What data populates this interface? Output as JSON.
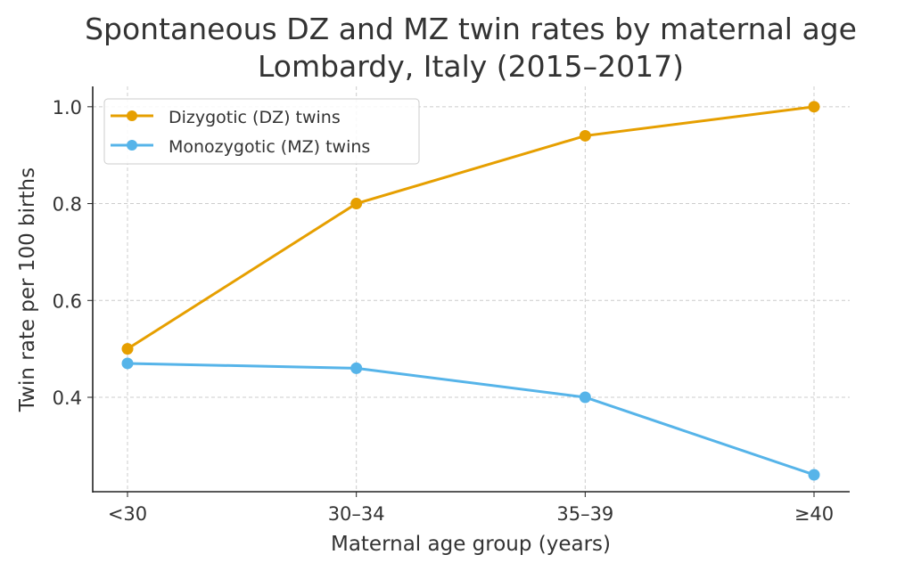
{
  "chart_data": {
    "type": "line",
    "title": "Spontaneous DZ and MZ twin rates by maternal age",
    "subtitle": "Lombardy, Italy (2015–2017)",
    "xlabel": "Maternal age group (years)",
    "ylabel": "Twin rate per 100 births",
    "categories": [
      "<30",
      "30–34",
      "35–39",
      "≥40"
    ],
    "yticks": [
      0.4,
      0.6,
      0.8,
      1.0
    ],
    "ytick_labels": [
      "0.4",
      "0.6",
      "0.8",
      "1.0"
    ],
    "ylim": [
      0.205,
      1.042
    ],
    "grid": true,
    "legend_position": "top-left",
    "series": [
      {
        "name": "Dizygotic (DZ) twins",
        "values": [
          0.5,
          0.8,
          0.94,
          1.0
        ],
        "color": "#E69F00"
      },
      {
        "name": "Monozygotic (MZ) twins",
        "values": [
          0.47,
          0.46,
          0.4,
          0.24
        ],
        "color": "#56B4E9"
      }
    ]
  }
}
